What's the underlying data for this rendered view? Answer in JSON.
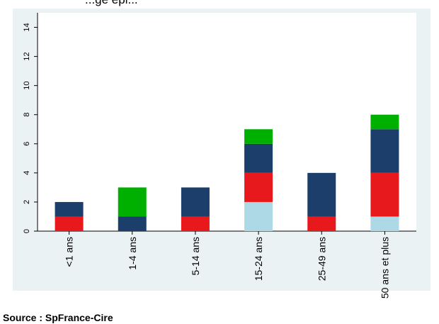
{
  "header": {
    "title": "...ge épi..."
  },
  "footer": {
    "source": "Source : SpFrance-Cire"
  },
  "colors": {
    "background": "#eaf2f3",
    "plot": "#ffffff",
    "s1": "#add8e6",
    "s2": "#e8191c",
    "s3": "#1b3e6b",
    "s4": "#00b000"
  },
  "chart_data": {
    "type": "bar",
    "stacked": true,
    "categories": [
      "<1 ans",
      "1-4 ans",
      "5-14 ans",
      "15-24 ans",
      "25-49 ans",
      "50 ans et plus"
    ],
    "series": [
      {
        "values": [
          0,
          0,
          0,
          2,
          0,
          1
        ],
        "color": "#add8e6"
      },
      {
        "values": [
          1,
          0,
          1,
          2,
          1,
          3
        ],
        "color": "#e8191c"
      },
      {
        "values": [
          1,
          1,
          2,
          2,
          3,
          3
        ],
        "color": "#1b3e6b"
      },
      {
        "values": [
          0,
          2,
          0,
          1,
          0,
          1
        ],
        "color": "#00b000"
      }
    ],
    "yticks": [
      "0",
      "2",
      "4",
      "6",
      "8",
      "10",
      "12",
      "14"
    ],
    "ylim": [
      0,
      15
    ],
    "grid": false,
    "x_tick_rotation": "vertical"
  }
}
